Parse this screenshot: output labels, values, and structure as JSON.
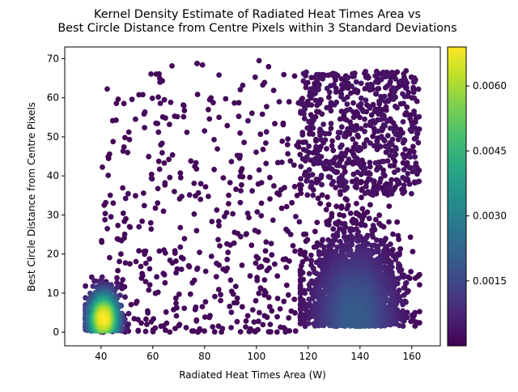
{
  "chart_data": {
    "type": "scatter",
    "title_line1": "Kernel Density Estimate of Radiated Heat Times Area vs",
    "title_line2": "Best Circle Distance from Centre Pixels within 3 Standard Deviations",
    "xlabel": "Radiated Heat Times Area (W)",
    "ylabel": "Best Circle Distance from Centre Pixels",
    "xlim": [
      26,
      171
    ],
    "ylim": [
      -3.5,
      73
    ],
    "xticks": [
      40,
      60,
      80,
      100,
      120,
      140,
      160
    ],
    "yticks": [
      0,
      10,
      20,
      30,
      40,
      50,
      60,
      70
    ],
    "grid": false,
    "colormap": "viridis",
    "colorbar": {
      "range": [
        0.0,
        0.0069
      ],
      "ticks": [
        0.0015,
        0.003,
        0.0045,
        0.006
      ],
      "tick_labels": [
        "0.0015",
        "0.0030",
        "0.0045",
        "0.0060"
      ]
    },
    "clusters": [
      {
        "name": "dense_low",
        "x_range": [
          34,
          50
        ],
        "y_range": [
          0,
          20
        ],
        "peak_density": 0.0069
      },
      {
        "name": "dense_right",
        "x_range": [
          117,
          158
        ],
        "y_range": [
          0,
          35
        ],
        "peak_density": 0.002
      },
      {
        "name": "sparse_right_high",
        "x_range": [
          117,
          163
        ],
        "y_range": [
          35,
          67
        ],
        "peak_density": 0.0004
      },
      {
        "name": "sparse_middle",
        "x_range": [
          40,
          117
        ],
        "y_range": [
          0,
          70
        ],
        "peak_density": 0.0002
      }
    ]
  }
}
